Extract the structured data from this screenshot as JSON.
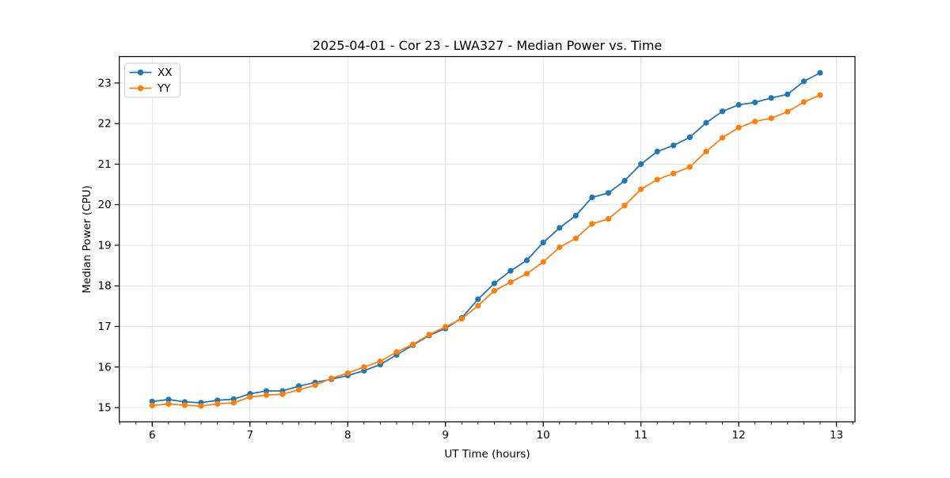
{
  "chart_data": {
    "type": "line",
    "title": "2025-04-01 - Cor 23 - LWA327 - Median Power vs. Time",
    "xlabel": "UT Time (hours)",
    "ylabel": "Median Power (CPU)",
    "xlim": [
      5.663,
      13.19
    ],
    "ylim": [
      14.65,
      23.65
    ],
    "x_ticks": [
      6,
      7,
      8,
      9,
      10,
      11,
      12,
      13
    ],
    "y_ticks": [
      15,
      16,
      17,
      18,
      19,
      20,
      21,
      22,
      23
    ],
    "x_minor_tick_step": 0.16667,
    "grid": true,
    "legend_position": "upper-left",
    "x": [
      6.0,
      6.167,
      6.333,
      6.5,
      6.667,
      6.833,
      7.0,
      7.167,
      7.333,
      7.5,
      7.667,
      7.833,
      8.0,
      8.167,
      8.333,
      8.5,
      8.667,
      8.833,
      9.0,
      9.167,
      9.333,
      9.5,
      9.667,
      9.833,
      10.0,
      10.167,
      10.333,
      10.5,
      10.667,
      10.833,
      11.0,
      11.167,
      11.333,
      11.5,
      11.667,
      11.833,
      12.0,
      12.167,
      12.333,
      12.5,
      12.667,
      12.833
    ],
    "series": [
      {
        "name": "XX",
        "color": "#1f77b4",
        "values": [
          15.15,
          15.2,
          15.14,
          15.12,
          15.18,
          15.21,
          15.34,
          15.41,
          15.41,
          15.53,
          15.62,
          15.7,
          15.79,
          15.91,
          16.06,
          16.3,
          16.54,
          16.78,
          16.95,
          17.21,
          17.67,
          18.06,
          18.37,
          18.63,
          19.07,
          19.43,
          19.73,
          20.18,
          20.29,
          20.59,
          21.0,
          21.31,
          21.46,
          21.66,
          22.02,
          22.3,
          22.46,
          22.52,
          22.63,
          22.72,
          23.04,
          23.25
        ]
      },
      {
        "name": "YY",
        "color": "#ff7f0e",
        "values": [
          15.05,
          15.09,
          15.06,
          15.04,
          15.09,
          15.12,
          15.26,
          15.31,
          15.33,
          15.44,
          15.55,
          15.72,
          15.85,
          16.0,
          16.14,
          16.37,
          16.56,
          16.8,
          16.99,
          17.19,
          17.51,
          17.88,
          18.09,
          18.3,
          18.59,
          18.95,
          19.17,
          19.53,
          19.65,
          19.98,
          20.38,
          20.62,
          20.77,
          20.93,
          21.31,
          21.65,
          21.9,
          22.05,
          22.13,
          22.29,
          22.53,
          22.7
        ]
      }
    ],
    "style": {
      "grid_color": "#e0e0e0",
      "spine_color": "#000000",
      "background": "#ffffff",
      "line_width": 1.8,
      "marker_radius": 3.6
    }
  }
}
